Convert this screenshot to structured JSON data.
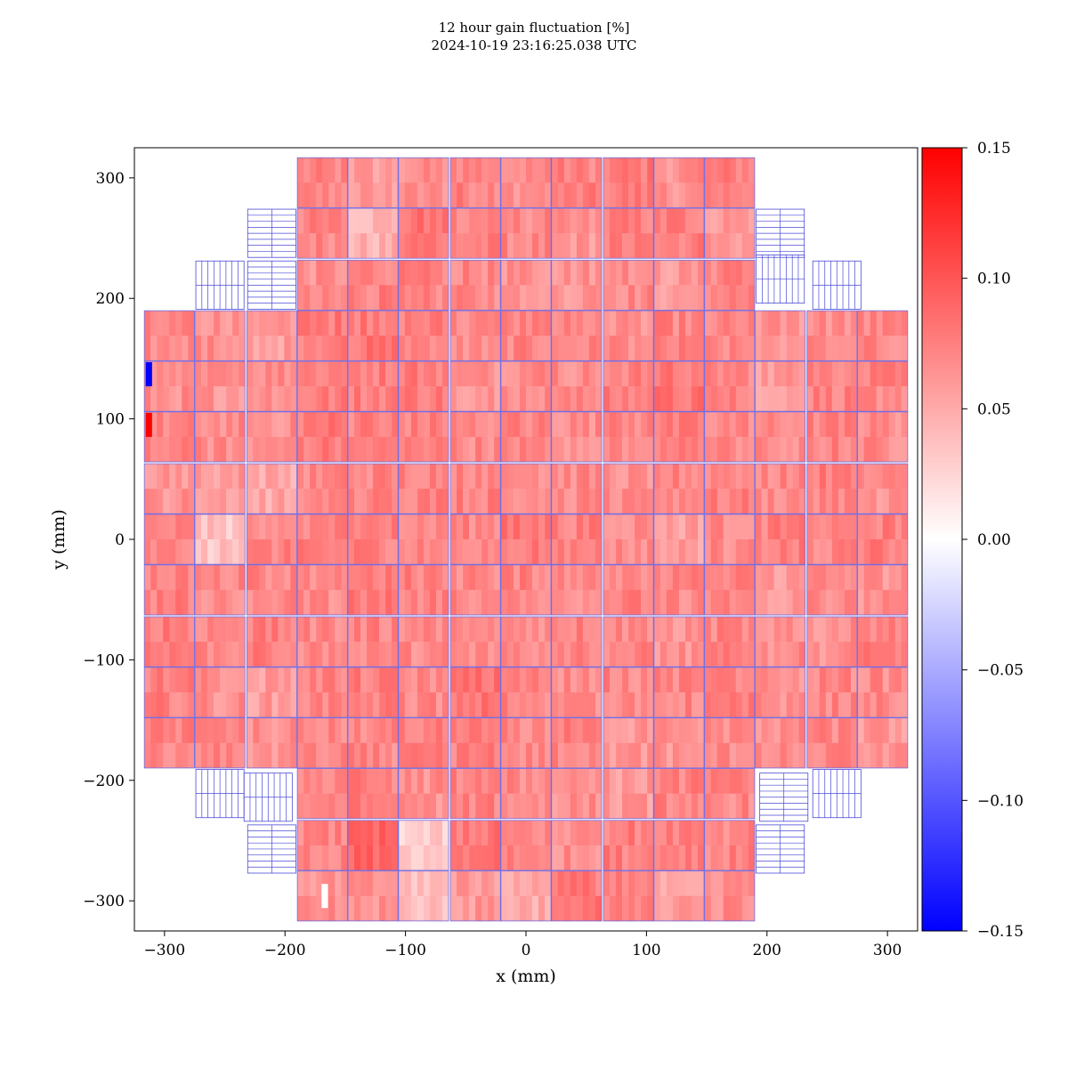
{
  "chart_data": {
    "type": "heatmap",
    "title": "12 hour gain fluctuation [%]",
    "subtitle": "2024-10-19 23:16:25.038 UTC",
    "xlabel": "x (mm)",
    "ylabel": "y (mm)",
    "xlim": [
      -325,
      325
    ],
    "ylim": [
      -325,
      325
    ],
    "x_ticks": [
      -300,
      -200,
      -100,
      0,
      100,
      200,
      300
    ],
    "y_ticks": [
      -300,
      -200,
      -100,
      0,
      100,
      200,
      300
    ],
    "x_tick_labels": [
      "−300",
      "−200",
      "−100",
      "0",
      "100",
      "200",
      "300"
    ],
    "y_tick_labels": [
      "−300",
      "−200",
      "−100",
      "0",
      "100",
      "200",
      "300"
    ],
    "colorbar": {
      "min": -0.15,
      "max": 0.15,
      "ticks": [
        0.15,
        0.1,
        0.05,
        0.0,
        -0.05,
        -0.1,
        -0.15
      ],
      "tick_labels": [
        "0.15",
        "0.10",
        "0.05",
        "0.00",
        "−0.05",
        "−0.10",
        "−0.15"
      ],
      "colormap": "bwr"
    },
    "module_pitch_mm": 42.3,
    "module_size_mm": 41.5,
    "module_grid_columns_x": [
      -296,
      -254,
      -211,
      -169,
      -127,
      -85,
      -42,
      0,
      42,
      85,
      127,
      169,
      211,
      254,
      296
    ],
    "module_grid_rows_y": [
      296,
      254,
      211,
      169,
      127,
      85,
      42,
      0,
      -42,
      -85,
      -127,
      -169,
      -211,
      -254,
      -296
    ],
    "module_rows": [
      {
        "y": 296,
        "x_from": -169,
        "x_to": 169,
        "values": [
          0.07,
          0.058,
          0.065,
          0.074,
          0.068,
          0.073,
          0.077,
          0.066,
          0.075
        ]
      },
      {
        "y": 254,
        "x_from": -169,
        "x_to": 169,
        "values": [
          0.072,
          0.045,
          0.08,
          0.073,
          0.07,
          0.062,
          0.074,
          0.076,
          0.062
        ]
      },
      {
        "y": 211,
        "x_from": -169,
        "x_to": 169,
        "values": [
          0.065,
          0.074,
          0.072,
          0.069,
          0.066,
          0.064,
          0.07,
          0.06,
          0.073
        ]
      },
      {
        "y": 169,
        "x_from": -296,
        "x_to": 296,
        "values": [
          0.068,
          0.066,
          0.058,
          0.078,
          0.08,
          0.075,
          0.068,
          0.071,
          0.07,
          0.066,
          0.072,
          0.068,
          0.063,
          0.067,
          0.07
        ]
      },
      {
        "y": 127,
        "x_from": -296,
        "x_to": 296,
        "values": [
          0.066,
          0.064,
          0.069,
          0.075,
          0.077,
          0.078,
          0.065,
          0.07,
          0.068,
          0.074,
          0.08,
          0.072,
          0.06,
          0.074,
          0.071
        ]
      },
      {
        "y": 85,
        "x_from": -296,
        "x_to": 296,
        "values": [
          0.07,
          0.068,
          0.066,
          0.079,
          0.074,
          0.073,
          0.07,
          0.072,
          0.068,
          0.071,
          0.073,
          0.07,
          0.066,
          0.072,
          0.068
        ]
      },
      {
        "y": 42,
        "x_from": -296,
        "x_to": 296,
        "values": [
          0.064,
          0.06,
          0.052,
          0.07,
          0.072,
          0.075,
          0.074,
          0.07,
          0.069,
          0.064,
          0.071,
          0.073,
          0.07,
          0.074,
          0.066
        ]
      },
      {
        "y": 0,
        "x_from": -296,
        "x_to": 296,
        "values": [
          0.07,
          0.035,
          0.072,
          0.073,
          0.075,
          0.07,
          0.071,
          0.078,
          0.074,
          0.068,
          0.058,
          0.068,
          0.074,
          0.07,
          0.075
        ]
      },
      {
        "y": -42,
        "x_from": -296,
        "x_to": 296,
        "values": [
          0.074,
          0.07,
          0.072,
          0.066,
          0.077,
          0.074,
          0.07,
          0.072,
          0.068,
          0.073,
          0.07,
          0.071,
          0.06,
          0.068,
          0.064
        ]
      },
      {
        "y": -85,
        "x_from": -296,
        "x_to": 296,
        "values": [
          0.078,
          0.072,
          0.073,
          0.07,
          0.072,
          0.069,
          0.066,
          0.07,
          0.074,
          0.07,
          0.064,
          0.071,
          0.067,
          0.066,
          0.073
        ]
      },
      {
        "y": -127,
        "x_from": -296,
        "x_to": 296,
        "values": [
          0.074,
          0.066,
          0.058,
          0.072,
          0.074,
          0.07,
          0.08,
          0.072,
          0.068,
          0.071,
          0.07,
          0.072,
          0.066,
          0.07,
          0.068
        ]
      },
      {
        "y": -169,
        "x_from": -296,
        "x_to": 296,
        "values": [
          0.072,
          0.07,
          0.064,
          0.068,
          0.07,
          0.072,
          0.074,
          0.069,
          0.073,
          0.062,
          0.064,
          0.068,
          0.066,
          0.07,
          0.06
        ]
      },
      {
        "y": -211,
        "x_from": -169,
        "x_to": 169,
        "values": [
          0.073,
          0.075,
          0.066,
          0.072,
          0.069,
          0.066,
          0.06,
          0.073,
          0.07
        ]
      },
      {
        "y": -254,
        "x_from": -169,
        "x_to": 169,
        "values": [
          0.07,
          0.088,
          0.028,
          0.08,
          0.071,
          0.066,
          0.076,
          0.078,
          0.072
        ]
      },
      {
        "y": -296,
        "x_from": -169,
        "x_to": 169,
        "values": [
          0.064,
          0.062,
          0.04,
          0.06,
          0.052,
          0.078,
          0.07,
          0.057,
          0.068
        ]
      }
    ],
    "special_pixels": [
      {
        "x": -313,
        "y": 137,
        "value": -0.15
      },
      {
        "x": -313,
        "y": 95,
        "value": 0.15
      },
      {
        "x": -167,
        "y": -296,
        "value": 0.0
      }
    ],
    "empty_module_outlines": [
      {
        "x": -211,
        "y": 254,
        "orientation": "horizontal"
      },
      {
        "x": -254,
        "y": 211,
        "orientation": "vertical"
      },
      {
        "x": -211,
        "y": 211,
        "orientation": "horizontal"
      },
      {
        "x": 211,
        "y": 254,
        "orientation": "horizontal"
      },
      {
        "x": 211,
        "y": 216,
        "orientation": "vertical"
      },
      {
        "x": 258,
        "y": 211,
        "orientation": "vertical"
      },
      {
        "x": -254,
        "y": -211,
        "orientation": "vertical"
      },
      {
        "x": -214,
        "y": -214,
        "orientation": "vertical"
      },
      {
        "x": -211,
        "y": -257,
        "orientation": "horizontal"
      },
      {
        "x": 214,
        "y": -214,
        "orientation": "horizontal"
      },
      {
        "x": 258,
        "y": -211,
        "orientation": "vertical"
      },
      {
        "x": 211,
        "y": -257,
        "orientation": "horizontal"
      }
    ]
  }
}
